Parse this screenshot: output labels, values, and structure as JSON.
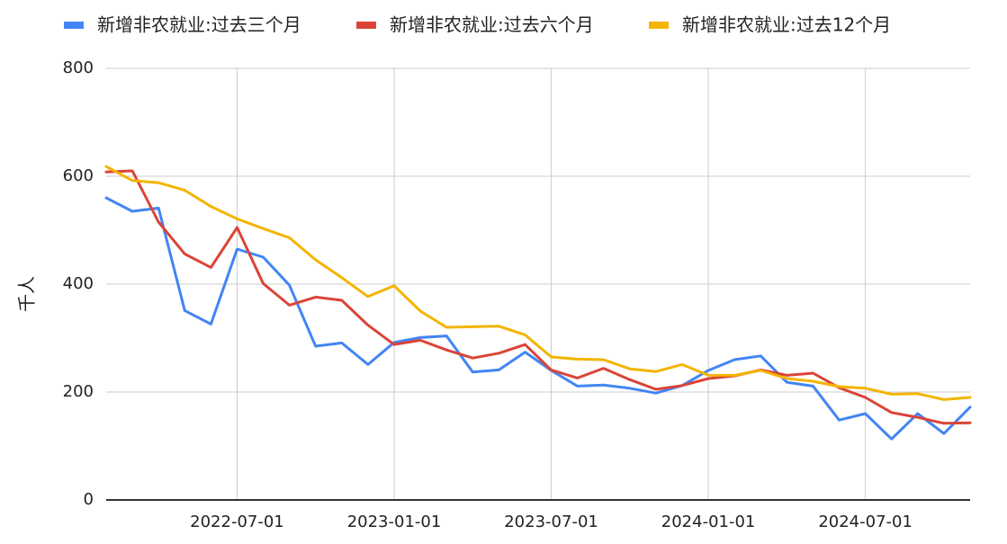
{
  "chart_data": {
    "type": "line",
    "title": "",
    "xlabel": "",
    "ylabel": "千人",
    "ylim": [
      0,
      800
    ],
    "yticks": [
      0,
      200,
      400,
      600,
      800
    ],
    "grid": true,
    "legend_position": "top",
    "x_tick_labels": [
      "2022-07-01",
      "2023-01-01",
      "2023-07-01",
      "2024-01-01",
      "2024-07-01"
    ],
    "x": [
      "2022-02",
      "2022-03",
      "2022-04",
      "2022-05",
      "2022-06",
      "2022-07",
      "2022-08",
      "2022-09",
      "2022-10",
      "2022-11",
      "2022-12",
      "2023-01",
      "2023-02",
      "2023-03",
      "2023-04",
      "2023-05",
      "2023-06",
      "2023-07",
      "2023-08",
      "2023-09",
      "2023-10",
      "2023-11",
      "2023-12",
      "2024-01",
      "2024-02",
      "2024-03",
      "2024-04",
      "2024-05",
      "2024-06",
      "2024-07",
      "2024-08",
      "2024-09",
      "2024-10",
      "2024-11"
    ],
    "series": [
      {
        "name": "新增非农就业:过去三个月",
        "color": "#4285f4",
        "values": [
          560,
          535,
          541,
          351,
          326,
          465,
          450,
          398,
          285,
          291,
          251,
          292,
          301,
          304,
          237,
          241,
          274,
          240,
          211,
          213,
          207,
          198,
          212,
          240,
          260,
          267,
          218,
          211,
          148,
          160,
          113,
          160,
          123,
          172
        ]
      },
      {
        "name": "新增非农就业:过去六个月",
        "color": "#db4437",
        "values": [
          608,
          610,
          515,
          456,
          431,
          505,
          401,
          361,
          376,
          370,
          324,
          288,
          296,
          278,
          263,
          272,
          288,
          241,
          226,
          244,
          223,
          205,
          212,
          225,
          230,
          241,
          231,
          235,
          208,
          190,
          162,
          153,
          142,
          143
        ]
      },
      {
        "name": "新增非农就业:过去12个月",
        "color": "#f4b400",
        "values": [
          618,
          592,
          588,
          574,
          544,
          521,
          503,
          486,
          445,
          412,
          377,
          397,
          350,
          320,
          321,
          322,
          306,
          265,
          261,
          260,
          243,
          238,
          251,
          231,
          231,
          240,
          225,
          220,
          210,
          207,
          196,
          197,
          186,
          190
        ]
      }
    ]
  }
}
